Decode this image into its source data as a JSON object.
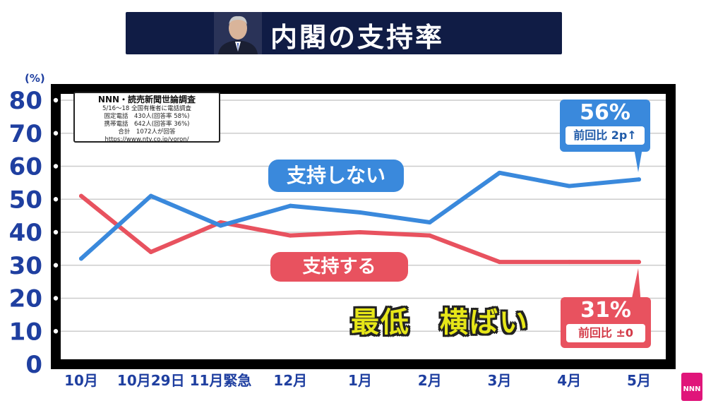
{
  "header": {
    "title": "内閣の支持率"
  },
  "survey": {
    "title": "NNN・読売新聞世論調査",
    "lines": [
      "5/16～18 全国有権者に電話調査",
      "固定電話　430人(回答率 58%)",
      "携帯電話　642人(回答率 36%)",
      "合計　1072人が回答",
      "https://www.ntv.co.jp/yoron/"
    ]
  },
  "labels": {
    "oppose": "支持しない",
    "support": "支持する",
    "oppose_value": "56%",
    "oppose_change": "前回比 2p↑",
    "support_value": "31%",
    "support_change": "前回比 ±0",
    "annotation": "最低　横ばい"
  },
  "logo": {
    "text": "NNN"
  },
  "colors": {
    "oppose": "#3a89dc",
    "support": "#e8525f",
    "axis": "#1f3fa0",
    "title_bg": "#101c45"
  },
  "chart_data": {
    "type": "line",
    "categories": [
      "10月",
      "10月29日",
      "11月緊急",
      "12月",
      "1月",
      "2月",
      "3月",
      "4月",
      "5月"
    ],
    "series": [
      {
        "name": "支持しない",
        "values": [
          32,
          51,
          42,
          48,
          46,
          43,
          58,
          54,
          56
        ]
      },
      {
        "name": "支持する",
        "values": [
          51,
          34,
          43,
          39,
          40,
          39,
          31,
          31,
          31
        ]
      }
    ],
    "yunit": "(%)",
    "ylim": [
      0,
      80
    ],
    "yticks": [
      0,
      10,
      20,
      30,
      40,
      50,
      60,
      70,
      80
    ],
    "grid": true
  }
}
